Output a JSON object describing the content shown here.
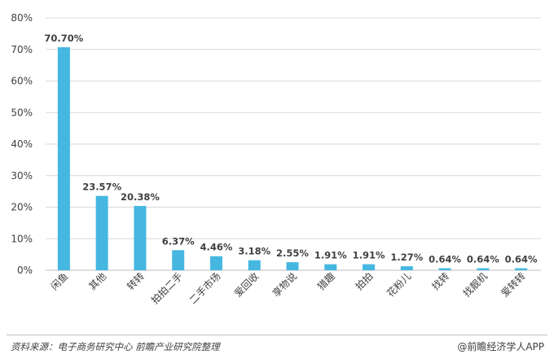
{
  "chart_data": {
    "type": "bar",
    "categories": [
      "闲鱼",
      "其他",
      "转转",
      "拍拍二手",
      "二手市场",
      "爱回收",
      "享物说",
      "猎趣",
      "拍拍",
      "花粉儿",
      "找转",
      "找靓机",
      "爱转转"
    ],
    "values": [
      70.7,
      23.57,
      20.38,
      6.37,
      4.46,
      3.18,
      2.55,
      1.91,
      1.91,
      1.27,
      0.64,
      0.64,
      0.64
    ],
    "data_labels": [
      "70.70%",
      "23.57%",
      "20.38%",
      "6.37%",
      "4.46%",
      "3.18%",
      "2.55%",
      "1.91%",
      "1.91%",
      "1.27%",
      "0.64%",
      "0.64%",
      "0.64%"
    ],
    "yticks": [
      "0%",
      "10%",
      "20%",
      "30%",
      "40%",
      "50%",
      "60%",
      "70%",
      "80%"
    ],
    "ylim": [
      0,
      80
    ],
    "grid": true,
    "bar_color": "#45b7e0"
  },
  "footer": {
    "source": "资料来源：电子商务研究中心 前瞻产业研究院整理",
    "brand": "@前瞻经济学人APP"
  }
}
